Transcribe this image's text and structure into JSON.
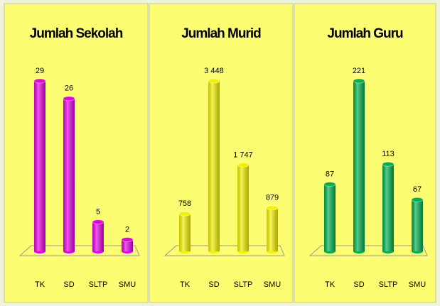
{
  "chart_data": [
    {
      "type": "bar",
      "title": "Jumlah Sekolah",
      "categories": [
        "TK",
        "SD",
        "SLTP",
        "SMU"
      ],
      "values": [
        29,
        26,
        5,
        2
      ],
      "color": "#e600e6"
    },
    {
      "type": "bar",
      "title": "Jumlah Murid",
      "categories": [
        "TK",
        "SD",
        "SLTP",
        "SMU"
      ],
      "values": [
        758,
        3448,
        1747,
        879
      ],
      "value_labels": [
        "758",
        "3 448",
        "1 747",
        "879"
      ],
      "color": "#f2f200"
    },
    {
      "type": "bar",
      "title": "Jumlah Guru",
      "categories": [
        "TK",
        "SD",
        "SLTP",
        "SMU"
      ],
      "values": [
        87,
        221,
        113,
        67
      ],
      "color": "#00b04f"
    }
  ]
}
